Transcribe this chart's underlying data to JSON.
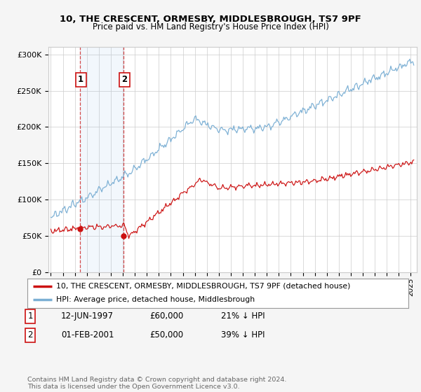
{
  "title1": "10, THE CRESCENT, ORMESBY, MIDDLESBROUGH, TS7 9PF",
  "title2": "Price paid vs. HM Land Registry's House Price Index (HPI)",
  "ylabel_ticks": [
    "£0",
    "£50K",
    "£100K",
    "£150K",
    "£200K",
    "£250K",
    "£300K"
  ],
  "ytick_vals": [
    0,
    50000,
    100000,
    150000,
    200000,
    250000,
    300000
  ],
  "ylim": [
    0,
    310000
  ],
  "xlim_start": 1994.8,
  "xlim_end": 2025.5,
  "sale1_date": 1997.45,
  "sale1_price": 60000,
  "sale1_label": "1",
  "sale2_date": 2001.08,
  "sale2_price": 50000,
  "sale2_label": "2",
  "hpi_color": "#7bafd4",
  "price_color": "#cc1111",
  "dashed_color": "#cc1111",
  "shaded_alpha": 0.15,
  "legend1_label": "10, THE CRESCENT, ORMESBY, MIDDLESBROUGH, TS7 9PF (detached house)",
  "legend2_label": "HPI: Average price, detached house, Middlesbrough",
  "table_entries": [
    {
      "num": "1",
      "date": "12-JUN-1997",
      "price": "£60,000",
      "pct": "21% ↓ HPI"
    },
    {
      "num": "2",
      "date": "01-FEB-2001",
      "price": "£50,000",
      "pct": "39% ↓ HPI"
    }
  ],
  "footer": "Contains HM Land Registry data © Crown copyright and database right 2024.\nThis data is licensed under the Open Government Licence v3.0.",
  "bg_color": "#f5f5f5",
  "plot_bg_color": "#ffffff",
  "grid_color": "#cccccc"
}
